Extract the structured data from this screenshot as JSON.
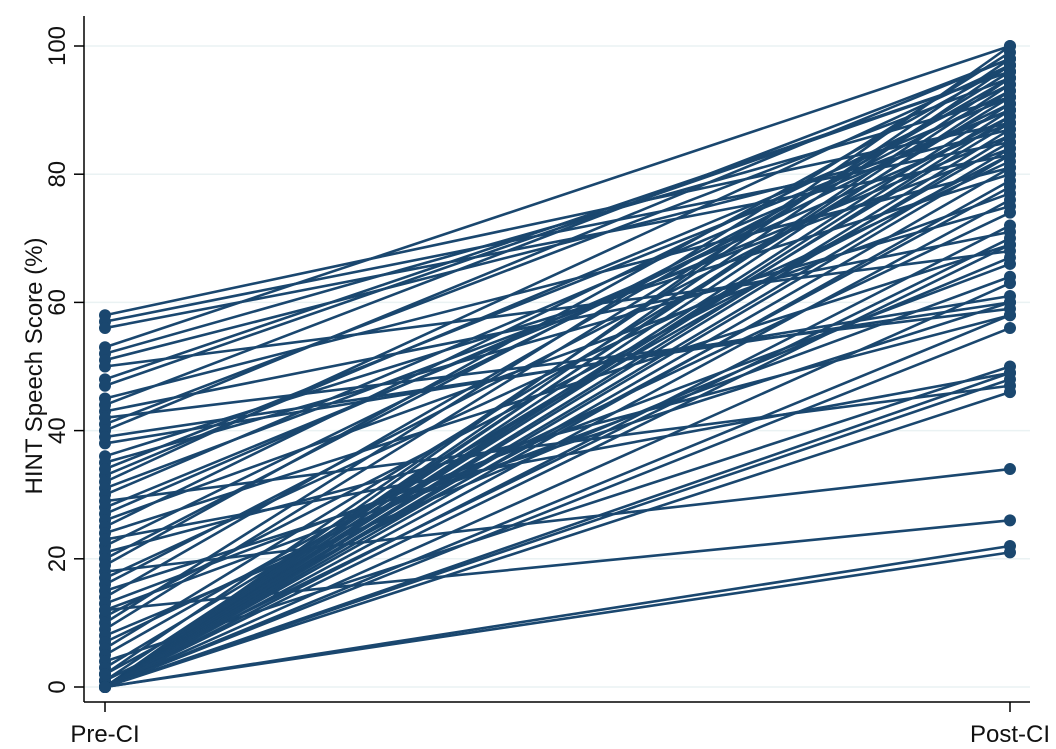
{
  "colors": {
    "series": "#1a476f",
    "grid": "#eaf2f3",
    "axis": "#000000",
    "background": "#ffffff"
  },
  "chart_data": {
    "type": "line",
    "title": "",
    "xlabel": "",
    "ylabel": "HINT Speech Score (%)",
    "categories": [
      "Pre-CI",
      "Post-CI"
    ],
    "ylim": [
      0,
      100
    ],
    "yticks": [
      0,
      20,
      40,
      60,
      80,
      100
    ],
    "grid": true,
    "legend": "none",
    "marker": "filled-circle",
    "pairs": [
      [
        58,
        88
      ],
      [
        57,
        85
      ],
      [
        53,
        100
      ],
      [
        52,
        92
      ],
      [
        51,
        87
      ],
      [
        50,
        68
      ],
      [
        48,
        96
      ],
      [
        45,
        81
      ],
      [
        43,
        71
      ],
      [
        42,
        59
      ],
      [
        41,
        95
      ],
      [
        40,
        98
      ],
      [
        38,
        61
      ],
      [
        36,
        80
      ],
      [
        35,
        75
      ],
      [
        33,
        92
      ],
      [
        32,
        97
      ],
      [
        31,
        84
      ],
      [
        30,
        90
      ],
      [
        29,
        47
      ],
      [
        28,
        86
      ],
      [
        27,
        88
      ],
      [
        26,
        77
      ],
      [
        25,
        94
      ],
      [
        24,
        69
      ],
      [
        22,
        91
      ],
      [
        21,
        58
      ],
      [
        20,
        93
      ],
      [
        18,
        34
      ],
      [
        17,
        82
      ],
      [
        16,
        89
      ],
      [
        15,
        60
      ],
      [
        14,
        95
      ],
      [
        13,
        66
      ],
      [
        12,
        26
      ],
      [
        11,
        83
      ],
      [
        10,
        99
      ],
      [
        9,
        96
      ],
      [
        8,
        67
      ],
      [
        7,
        74
      ],
      [
        6,
        92
      ],
      [
        5,
        85
      ],
      [
        4,
        50
      ],
      [
        3,
        88
      ],
      [
        2,
        78
      ],
      [
        1,
        94
      ],
      [
        1,
        70
      ],
      [
        0,
        100
      ],
      [
        0,
        97
      ],
      [
        0,
        95
      ],
      [
        0,
        93
      ],
      [
        0,
        91
      ],
      [
        0,
        90
      ],
      [
        0,
        89
      ],
      [
        0,
        87
      ],
      [
        0,
        86
      ],
      [
        0,
        84
      ],
      [
        0,
        83
      ],
      [
        0,
        81
      ],
      [
        0,
        79
      ],
      [
        0,
        76
      ],
      [
        0,
        72
      ],
      [
        0,
        69
      ],
      [
        0,
        63
      ],
      [
        0,
        58
      ],
      [
        0,
        56
      ],
      [
        0,
        49
      ],
      [
        0,
        48
      ],
      [
        0,
        46
      ],
      [
        0,
        22
      ],
      [
        0,
        21
      ],
      [
        2,
        98
      ],
      [
        12,
        64
      ],
      [
        19,
        97
      ],
      [
        23,
        49
      ],
      [
        34,
        90
      ],
      [
        39,
        60
      ],
      [
        44,
        98
      ],
      [
        56,
        83
      ],
      [
        47,
        96
      ]
    ]
  }
}
